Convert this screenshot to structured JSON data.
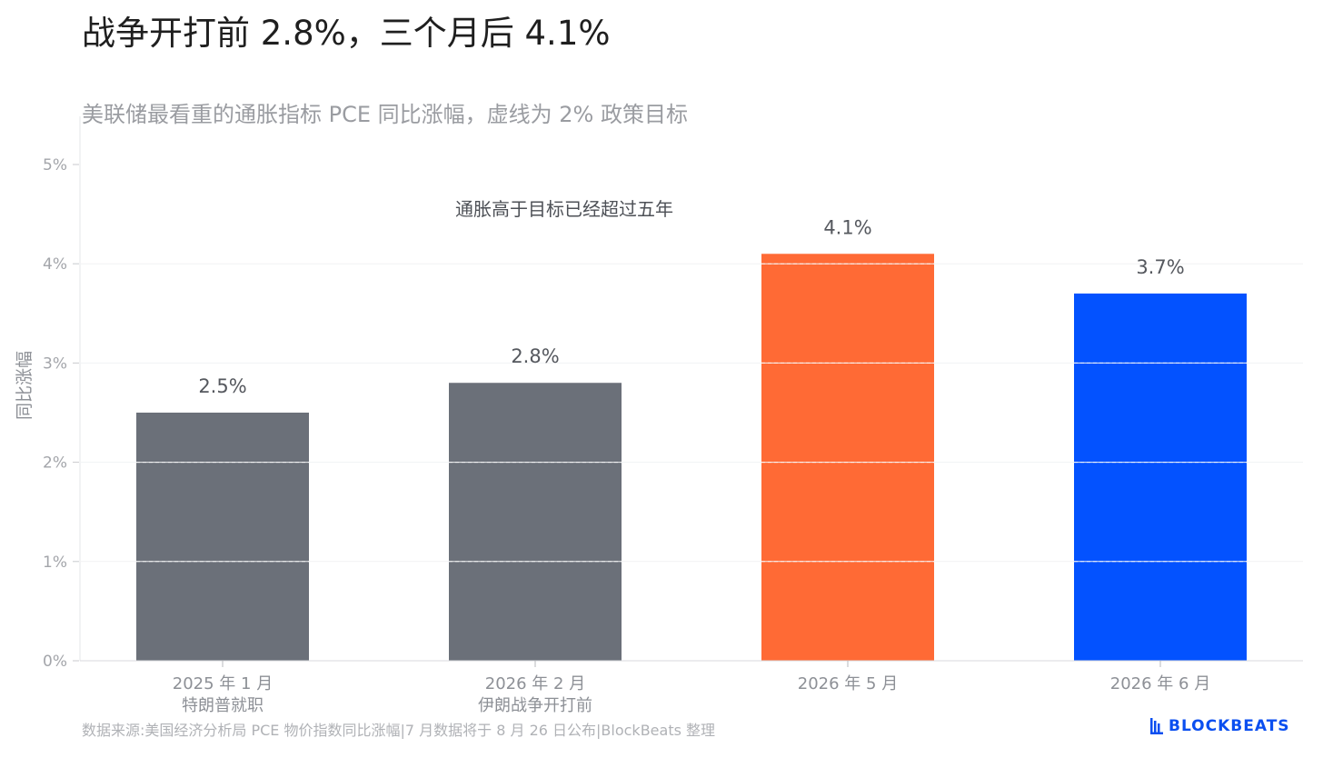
{
  "header": {
    "title": "战争开打前 2.8%，三个月后 4.1%",
    "subtitle": "美联储最看重的通胀指标 PCE 同比涨幅，虚线为 2% 政策目标"
  },
  "footer": {
    "source": "数据来源:美国经济分析局 PCE 物价指数同比涨幅|7 月数据将于 8 月 26 日公布|BlockBeats 整理",
    "brand": "BLOCKBEATS",
    "brand_icon": "bar-logo-icon",
    "brand_color": "#0b4ff0"
  },
  "chart_data": {
    "type": "bar",
    "title": "战争开打前 2.8%，三个月后 4.1%",
    "subtitle": "美联储最看重的通胀指标 PCE 同比涨幅，虚线为 2% 政策目标",
    "ylabel": "同比涨幅",
    "xlabel": "",
    "ylim": [
      0,
      5
    ],
    "yticks": [
      "0%",
      "1%",
      "2%",
      "3%",
      "4%",
      "5%"
    ],
    "ytick_values": [
      0,
      1,
      2,
      3,
      4,
      5
    ],
    "grid": "dashed horizontal",
    "categories": [
      [
        "2025 年 1 月",
        "特朗普就职"
      ],
      [
        "2026 年 2 月",
        "伊朗战争开打前"
      ],
      [
        "2026 年 5 月"
      ],
      [
        "2026 年 6 月"
      ]
    ],
    "values": [
      2.5,
      2.8,
      4.1,
      3.7
    ],
    "value_labels": [
      "2.5%",
      "2.8%",
      "4.1%",
      "3.7%"
    ],
    "colors": [
      "#6b7079",
      "#6b7079",
      "#ff6a35",
      "#0352ff"
    ],
    "annotation": "通胀高于目标已经超过五年"
  }
}
